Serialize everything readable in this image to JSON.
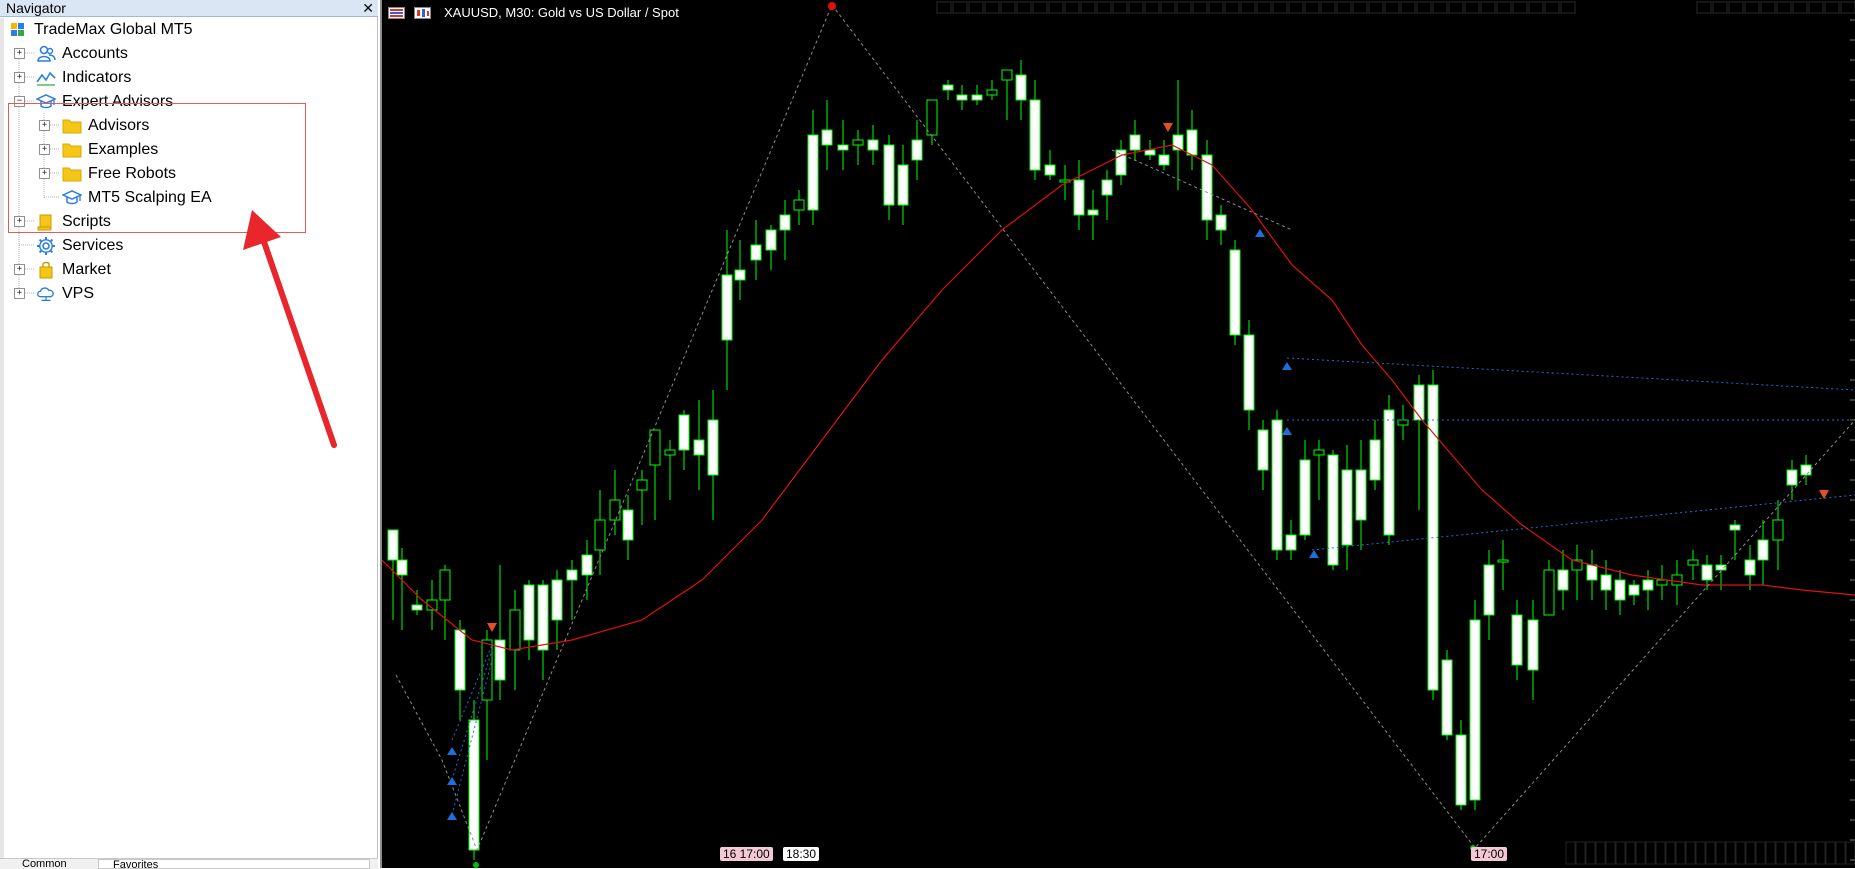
{
  "navigator": {
    "title": "Navigator",
    "close_glyph": "✕",
    "tree": [
      {
        "label": "TradeMax Global MT5",
        "icon": "terminal-icon",
        "level": 0,
        "expander": ""
      },
      {
        "label": "Accounts",
        "icon": "accounts-icon",
        "level": 1,
        "expander": "+"
      },
      {
        "label": "Indicators",
        "icon": "indicators-icon",
        "level": 1,
        "expander": "+"
      },
      {
        "label": "Expert Advisors",
        "icon": "expert-advisors-icon",
        "level": 1,
        "expander": "−"
      },
      {
        "label": "Advisors",
        "icon": "folder-icon",
        "level": 2,
        "expander": "+"
      },
      {
        "label": "Examples",
        "icon": "folder-icon",
        "level": 2,
        "expander": "+"
      },
      {
        "label": "Free Robots",
        "icon": "folder-icon",
        "level": 2,
        "expander": "+"
      },
      {
        "label": "MT5 Scalping EA",
        "icon": "expert-advisor-icon",
        "level": 2,
        "expander": ""
      },
      {
        "label": "Scripts",
        "icon": "scripts-icon",
        "level": 1,
        "expander": "+"
      },
      {
        "label": "Services",
        "icon": "services-icon",
        "level": 1,
        "expander": ""
      },
      {
        "label": "Market",
        "icon": "market-icon",
        "level": 1,
        "expander": "+"
      },
      {
        "label": "VPS",
        "icon": "vps-icon",
        "level": 1,
        "expander": "+"
      }
    ],
    "tabs": {
      "common": "Common",
      "favorites": "Favorites"
    }
  },
  "chart": {
    "title": "XAUUSD, M30:  Gold vs US Dollar / Spot",
    "time_labels": [
      "16 17:00",
      "18:30",
      "17:00"
    ],
    "colors": {
      "background": "#000000",
      "candle_bull_outline": "#00ff00",
      "candle_bear_fill": "#ffffff",
      "moving_average": "#e01010",
      "zigzag": "#8c8c8c",
      "trend_lines": "#1e6fd9",
      "buy_arrow": "#1e6fd9",
      "sell_arrow": "#e5502a"
    }
  },
  "annotation": {
    "arrow_color": "#e8262c",
    "highlight_color": "#e8585a"
  }
}
